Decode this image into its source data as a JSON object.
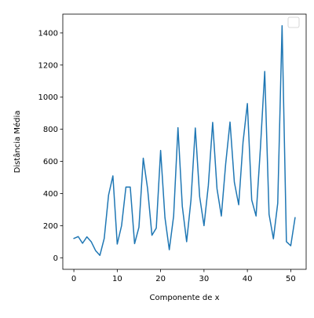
{
  "chart_data": {
    "type": "line",
    "xlabel": "Componente de x",
    "ylabel": "Distância Média",
    "xlim": [
      -2.55,
      53.55
    ],
    "ylim": [
      -72,
      1517
    ],
    "xticks": [
      0,
      10,
      20,
      30,
      40,
      50
    ],
    "yticks": [
      0,
      200,
      400,
      600,
      800,
      1000,
      1200,
      1400
    ],
    "grid": false,
    "legend": {
      "placement": "top-right",
      "entries": []
    },
    "series": [
      {
        "color": "#1f77b4",
        "x": [
          0,
          1,
          2,
          3,
          4,
          5,
          6,
          7,
          8,
          9,
          10,
          11,
          12,
          13,
          14,
          15,
          16,
          17,
          18,
          19,
          20,
          21,
          22,
          23,
          24,
          25,
          26,
          27,
          28,
          29,
          30,
          31,
          32,
          33,
          34,
          35,
          36,
          37,
          38,
          39,
          40,
          41,
          42,
          43,
          44,
          45,
          46,
          47,
          48,
          49,
          50,
          51
        ],
        "values": [
          120,
          132,
          90,
          130,
          100,
          45,
          15,
          120,
          390,
          510,
          85,
          200,
          440,
          440,
          88,
          190,
          620,
          430,
          140,
          185,
          668,
          250,
          50,
          260,
          810,
          320,
          100,
          360,
          808,
          380,
          200,
          450,
          843,
          430,
          260,
          585,
          845,
          470,
          330,
          720,
          960,
          360,
          260,
          680,
          1160,
          270,
          118,
          340,
          1445,
          100,
          75,
          250
        ]
      }
    ]
  }
}
